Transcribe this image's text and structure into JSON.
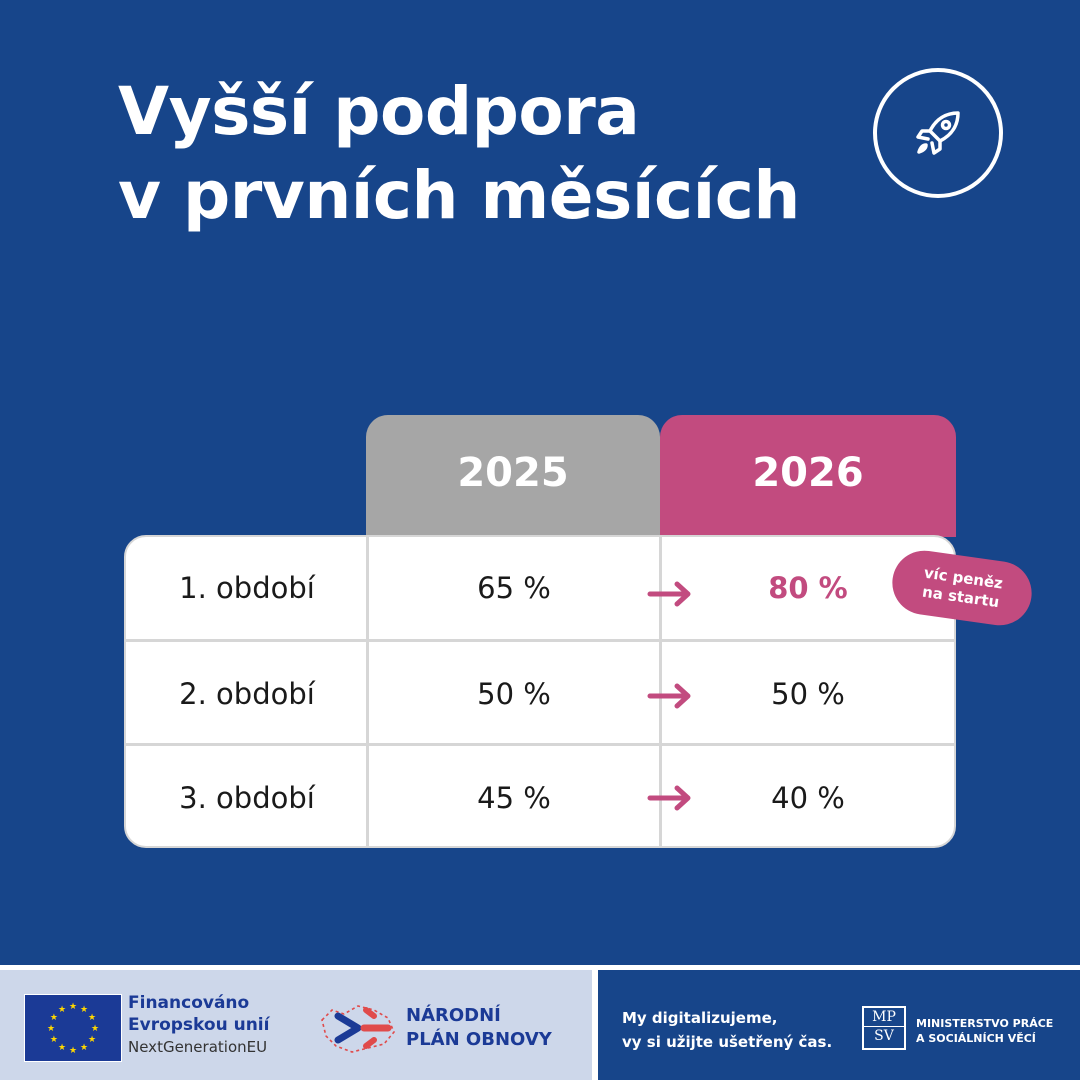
{
  "title": {
    "line1": "Vyšší podpora",
    "line2": "v prvních měsících"
  },
  "header_icon": "rocket-icon",
  "table": {
    "years": [
      "2025",
      "2026"
    ],
    "rows": [
      {
        "label": "1. období",
        "v2025": "65 %",
        "v2026": "80 %"
      },
      {
        "label": "2. období",
        "v2025": "50 %",
        "v2026": "50 %"
      },
      {
        "label": "3. období",
        "v2025": "45 %",
        "v2026": "40 %"
      }
    ]
  },
  "badge": {
    "line1": "víc peněz",
    "line2": "na startu"
  },
  "footer": {
    "eu": {
      "line1": "Financováno",
      "line2": "Evropskou unií",
      "line3": "NextGenerationEU"
    },
    "npo": {
      "line1": "NÁRODNÍ",
      "line2": "PLÁN OBNOVY"
    },
    "slogan": {
      "line1": "My digitalizujeme,",
      "line2": "vy si užijte ušetřený čas."
    },
    "mpsv": {
      "logo_top": "MP",
      "logo_bottom": "SV",
      "line1": "MINISTERSTVO PRÁCE",
      "line2": "A SOCIÁLNÍCH VĚCÍ"
    }
  },
  "colors": {
    "background": "#17458a",
    "accent": "#c24b7f",
    "gray": "#a6a6a6"
  }
}
